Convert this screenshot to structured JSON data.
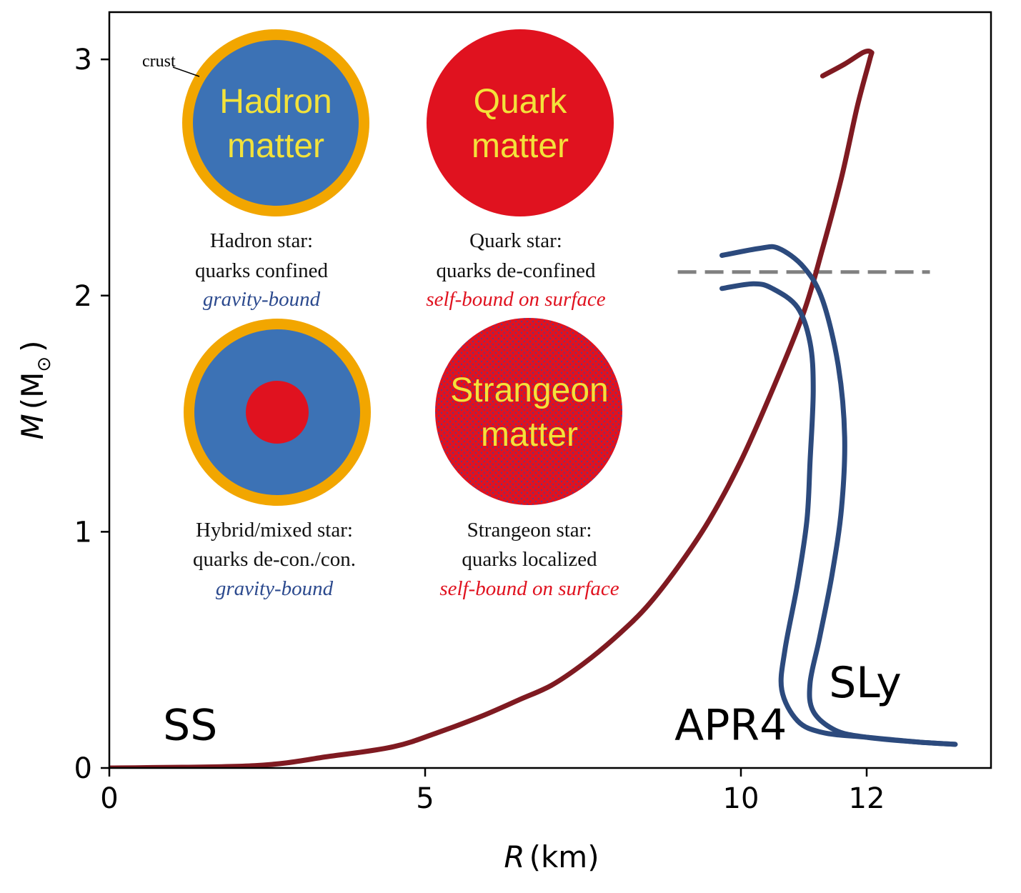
{
  "chart_data": {
    "type": "line",
    "xlabel_var": "R",
    "xlabel_unit": "(km)",
    "ylabel_var": "M",
    "ylabel_unit": "(M",
    "ylabel_sub": "⊙",
    "ylabel_close": ")",
    "xticks": [
      {
        "pos": 0,
        "label": "0"
      },
      {
        "pos": 5,
        "label": "5"
      },
      {
        "pos": 10,
        "label": "10"
      },
      {
        "pos": 12,
        "label": "12"
      }
    ],
    "yticks": [
      {
        "pos": 0,
        "label": "0"
      },
      {
        "pos": 1,
        "label": "1"
      },
      {
        "pos": 2,
        "label": "2"
      },
      {
        "pos": 3,
        "label": "3"
      }
    ],
    "xlim": [
      0,
      14
    ],
    "ylim": [
      0,
      3.2
    ],
    "reference_line": {
      "y": 2.1,
      "x": [
        9,
        13
      ],
      "color": "#808080",
      "style": "dashed"
    },
    "series": [
      {
        "name": "SS",
        "color": "#7f1a21",
        "points": [
          [
            0,
            0
          ],
          [
            2.3,
            0.01
          ],
          [
            3.5,
            0.05
          ],
          [
            4.5,
            0.09
          ],
          [
            5.2,
            0.15
          ],
          [
            5.9,
            0.22
          ],
          [
            6.5,
            0.29
          ],
          [
            7.0,
            0.35
          ],
          [
            7.5,
            0.44
          ],
          [
            8.0,
            0.55
          ],
          [
            8.5,
            0.68
          ],
          [
            9.0,
            0.85
          ],
          [
            9.5,
            1.05
          ],
          [
            10.0,
            1.3
          ],
          [
            10.5,
            1.6
          ],
          [
            11.0,
            1.93
          ],
          [
            11.3,
            2.2
          ],
          [
            11.6,
            2.5
          ],
          [
            11.85,
            2.8
          ],
          [
            12.05,
            3.0
          ],
          [
            12.07,
            3.03
          ],
          [
            11.95,
            3.03
          ],
          [
            11.65,
            2.98
          ],
          [
            11.3,
            2.93
          ]
        ]
      },
      {
        "name": "APR4",
        "color": "#2c4a7d",
        "points": [
          [
            13.4,
            0.1
          ],
          [
            12.8,
            0.11
          ],
          [
            12.0,
            0.13
          ],
          [
            11.3,
            0.15
          ],
          [
            10.9,
            0.2
          ],
          [
            10.65,
            0.33
          ],
          [
            10.7,
            0.5
          ],
          [
            10.9,
            0.78
          ],
          [
            11.05,
            1.05
          ],
          [
            11.1,
            1.3
          ],
          [
            11.15,
            1.6
          ],
          [
            11.1,
            1.8
          ],
          [
            10.9,
            1.95
          ],
          [
            10.5,
            2.03
          ],
          [
            10.2,
            2.05
          ],
          [
            9.7,
            2.03
          ]
        ]
      },
      {
        "name": "SLy",
        "color": "#2c4a7d",
        "points": [
          [
            13.4,
            0.1
          ],
          [
            12.8,
            0.11
          ],
          [
            12.0,
            0.13
          ],
          [
            11.5,
            0.16
          ],
          [
            11.15,
            0.24
          ],
          [
            11.1,
            0.36
          ],
          [
            11.25,
            0.55
          ],
          [
            11.45,
            0.82
          ],
          [
            11.6,
            1.1
          ],
          [
            11.65,
            1.4
          ],
          [
            11.55,
            1.7
          ],
          [
            11.3,
            1.98
          ],
          [
            11.0,
            2.12
          ],
          [
            10.6,
            2.2
          ],
          [
            10.3,
            2.2
          ],
          [
            9.7,
            2.17
          ]
        ]
      }
    ],
    "curve_labels": [
      {
        "text": "SS",
        "x": 0.85,
        "y": 0.12
      },
      {
        "text": "APR4",
        "x": 8.95,
        "y": 0.12
      },
      {
        "text": "SLy",
        "x": 11.4,
        "y": 0.3
      }
    ]
  },
  "insets": {
    "crust": "crust",
    "hadron": {
      "ball_lines": [
        "Hadron",
        "matter"
      ],
      "caption_lines": [
        "Hadron star:",
        "quarks confined"
      ],
      "caption_italic": "gravity-bound"
    },
    "quark": {
      "ball_lines": [
        "Quark",
        "matter"
      ],
      "caption_lines": [
        "Quark star:",
        "quarks de-confined"
      ],
      "caption_italic": "self-bound on surface"
    },
    "hybrid": {
      "caption_lines": [
        "Hybrid/mixed star:",
        "quarks de-con./con."
      ],
      "caption_italic": "gravity-bound"
    },
    "strangeon": {
      "ball_lines": [
        "Strangeon",
        "matter"
      ],
      "caption_lines": [
        "Strangeon star:",
        "quarks localized"
      ],
      "caption_italic": "self-bound on surface"
    },
    "colors": {
      "crust": "#f2a600",
      "hadron": "#3c72b5",
      "quark": "#e0121f",
      "text": "#f3e23a"
    }
  }
}
